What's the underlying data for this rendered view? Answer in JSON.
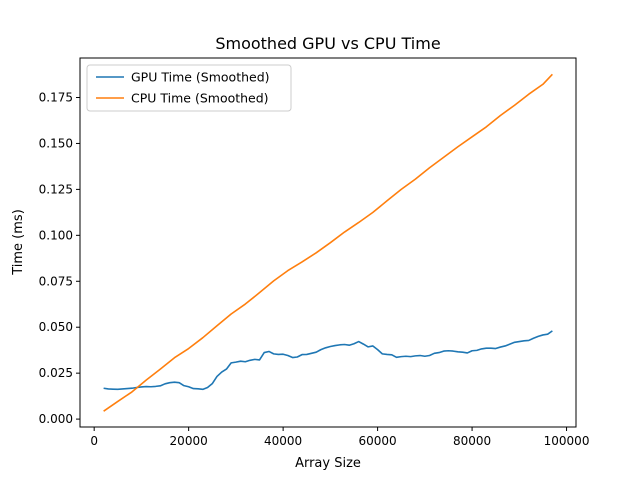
{
  "chart_data": {
    "type": "line",
    "title": "Smoothed GPU vs CPU Time",
    "xlabel": "Array Size",
    "ylabel": "Time (ms)",
    "xlim": [
      -3000,
      102000
    ],
    "ylim": [
      -0.0043,
      0.1965
    ],
    "xticks": [
      0,
      20000,
      40000,
      60000,
      80000,
      100000
    ],
    "xtick_labels": [
      "0",
      "20000",
      "40000",
      "60000",
      "80000",
      "100000"
    ],
    "yticks": [
      0.0,
      0.025,
      0.05,
      0.075,
      0.1,
      0.125,
      0.15,
      0.175
    ],
    "ytick_labels": [
      "0.000",
      "0.025",
      "0.050",
      "0.075",
      "0.100",
      "0.125",
      "0.150",
      "0.175"
    ],
    "grid": false,
    "legend_position": "top-left",
    "series": [
      {
        "name": "GPU Time (Smoothed)",
        "color": "#1f77b4",
        "x": [
          2000,
          3000,
          4000,
          5000,
          6000,
          7000,
          8000,
          9000,
          10000,
          11000,
          12000,
          13000,
          14000,
          15000,
          16000,
          17000,
          18000,
          19000,
          20000,
          21000,
          22000,
          23000,
          24000,
          25000,
          26000,
          27000,
          28000,
          29000,
          30000,
          31000,
          32000,
          33000,
          34000,
          35000,
          36000,
          37000,
          38000,
          39000,
          40000,
          41000,
          42000,
          43000,
          44000,
          45000,
          46000,
          47000,
          48000,
          49000,
          50000,
          51000,
          52000,
          53000,
          54000,
          55000,
          56000,
          57000,
          58000,
          59000,
          60000,
          61000,
          62000,
          63000,
          64000,
          65000,
          66000,
          67000,
          68000,
          69000,
          70000,
          71000,
          72000,
          73000,
          74000,
          75000,
          76000,
          77000,
          78000,
          79000,
          80000,
          81000,
          82000,
          83000,
          84000,
          85000,
          86000,
          87000,
          88000,
          89000,
          90000,
          91000,
          92000,
          93000,
          94000,
          95000,
          96000,
          97000
        ],
        "y": [
          0.0168,
          0.0164,
          0.0163,
          0.0162,
          0.0164,
          0.0166,
          0.0168,
          0.0172,
          0.0175,
          0.0177,
          0.0176,
          0.0178,
          0.0181,
          0.0192,
          0.0198,
          0.0201,
          0.0198,
          0.0182,
          0.0176,
          0.0166,
          0.0165,
          0.0162,
          0.0172,
          0.0193,
          0.0232,
          0.0256,
          0.0272,
          0.0306,
          0.031,
          0.0315,
          0.0312,
          0.032,
          0.0325,
          0.0322,
          0.0362,
          0.0368,
          0.0355,
          0.0352,
          0.0353,
          0.0346,
          0.0335,
          0.0338,
          0.0351,
          0.0352,
          0.0358,
          0.0364,
          0.0378,
          0.0388,
          0.0395,
          0.04,
          0.0404,
          0.0406,
          0.0402,
          0.041,
          0.0422,
          0.0408,
          0.0393,
          0.0398,
          0.0378,
          0.0355,
          0.0352,
          0.035,
          0.0336,
          0.034,
          0.0342,
          0.034,
          0.0344,
          0.0346,
          0.0342,
          0.0346,
          0.0358,
          0.0362,
          0.037,
          0.0372,
          0.037,
          0.0366,
          0.0364,
          0.036,
          0.0372,
          0.0374,
          0.0382,
          0.0386,
          0.0386,
          0.0384,
          0.0392,
          0.0398,
          0.0408,
          0.0418,
          0.0422,
          0.0426,
          0.0428,
          0.044,
          0.045,
          0.0458,
          0.0462,
          0.048
        ]
      },
      {
        "name": "CPU Time (Smoothed)",
        "color": "#ff7f0e",
        "x": [
          2000,
          5000,
          8000,
          11000,
          14000,
          17000,
          20000,
          23000,
          26000,
          29000,
          32000,
          35000,
          38000,
          41000,
          44000,
          47000,
          50000,
          53000,
          56000,
          59000,
          62000,
          65000,
          68000,
          71000,
          74000,
          77000,
          80000,
          83000,
          86000,
          89000,
          92000,
          95000,
          97000
        ],
        "y": [
          0.0043,
          0.0096,
          0.0148,
          0.0212,
          0.0272,
          0.0334,
          0.0384,
          0.0443,
          0.0508,
          0.0572,
          0.0626,
          0.0688,
          0.0752,
          0.0808,
          0.0855,
          0.0905,
          0.096,
          0.1018,
          0.107,
          0.1125,
          0.1188,
          0.125,
          0.1306,
          0.1368,
          0.1425,
          0.1482,
          0.1536,
          0.159,
          0.1652,
          0.1708,
          0.1768,
          0.1822,
          0.1876
        ]
      }
    ]
  }
}
